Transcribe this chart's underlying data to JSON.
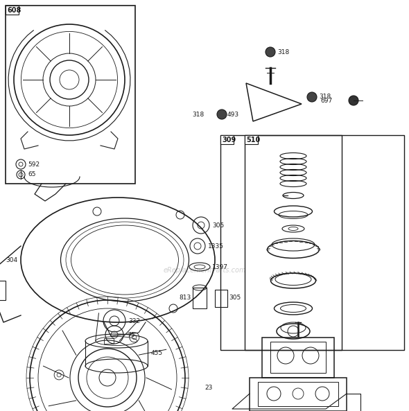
{
  "bg_color": "#ffffff",
  "line_color": "#1a1a1a",
  "watermark_color": "#bbbbbb",
  "watermark_text": "eReplacementParts.com"
}
